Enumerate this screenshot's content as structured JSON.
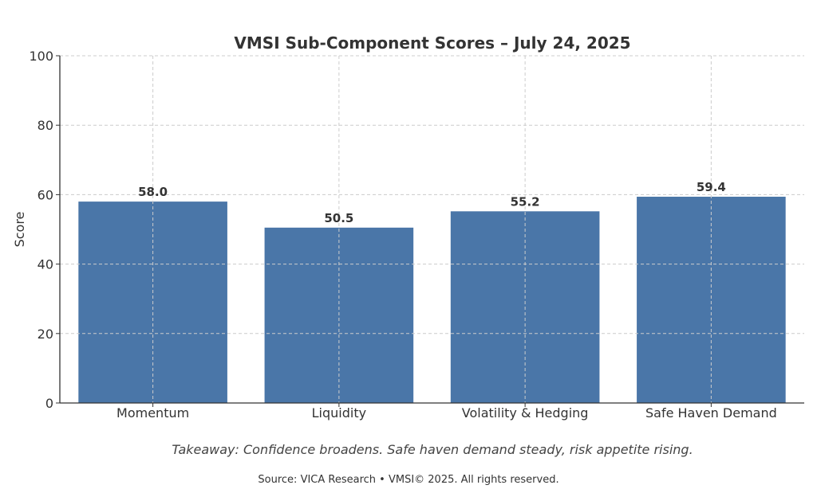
{
  "chart_data": {
    "type": "bar",
    "title": "VMSI Sub-Component Scores – July 24, 2025",
    "xlabel": "",
    "ylabel": "Score",
    "categories": [
      "Momentum",
      "Liquidity",
      "Volatility & Hedging",
      "Safe Haven Demand"
    ],
    "values": [
      58.0,
      50.5,
      55.2,
      59.4
    ],
    "value_labels": [
      "58.0",
      "50.5",
      "55.2",
      "59.4"
    ],
    "ylim": [
      0,
      100
    ],
    "yticks": [
      0,
      20,
      40,
      60,
      80,
      100
    ],
    "grid": true,
    "bar_color": "#4a76a8"
  },
  "footer": {
    "takeaway": "Takeaway: Confidence broadens. Safe haven demand steady, risk appetite rising.",
    "source": "Source: VICA Research • VMSI© 2025. All rights reserved."
  }
}
